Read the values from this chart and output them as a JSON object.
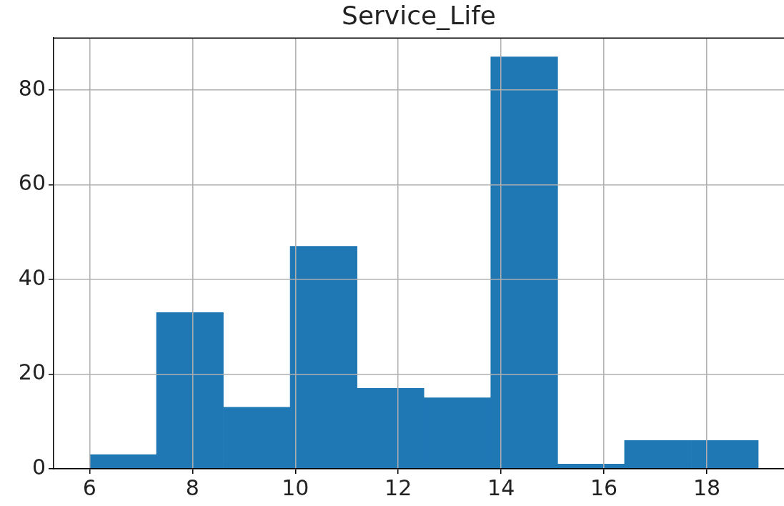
{
  "chart_data": {
    "type": "histogram",
    "title": "Service_Life",
    "bins": [
      6,
      7.3,
      8.6,
      9.9,
      11.2,
      12.5,
      13.8,
      15.1,
      16.4,
      17.7,
      19
    ],
    "values": [
      3,
      33,
      13,
      47,
      17,
      15,
      87,
      1,
      6,
      6
    ],
    "color": "#1f77b4",
    "xlim": [
      5.3,
      19.5
    ],
    "xticks": [
      6,
      8,
      10,
      12,
      14,
      16,
      18
    ],
    "ylim": [
      0,
      91
    ],
    "yticks": [
      0,
      20,
      40,
      60,
      80
    ],
    "grid": true
  }
}
